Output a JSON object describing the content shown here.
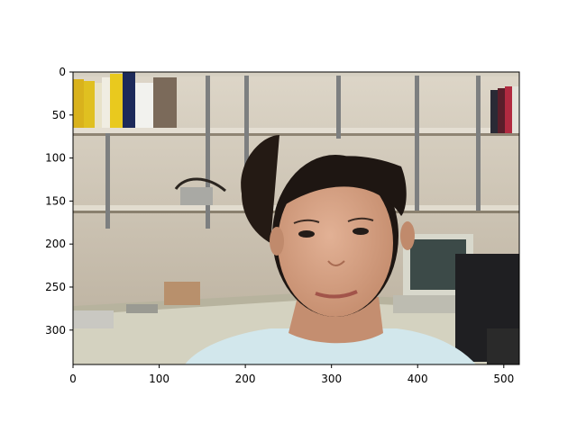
{
  "figure": {
    "x_ticks": [
      "0",
      "100",
      "200",
      "300",
      "400",
      "500"
    ],
    "y_ticks": [
      "0",
      "50",
      "100",
      "150",
      "200",
      "250",
      "300"
    ],
    "x_tick_values": [
      0,
      100,
      200,
      300,
      400,
      500
    ],
    "y_tick_values": [
      0,
      50,
      100,
      150,
      200,
      250,
      300
    ],
    "image_width_units": 518,
    "image_height_units": 340
  },
  "scene": {
    "description_tags": [
      "office-background",
      "shelves",
      "books",
      "person-portrait",
      "crt-monitor",
      "desk"
    ],
    "colors": {
      "wall": "#cfc6b8",
      "shelf": "#d8d2c4",
      "desk": "#d9d6c6",
      "hair": "#1e1612",
      "skin": "#d5a183",
      "shirt": "#cfe6ec"
    }
  }
}
